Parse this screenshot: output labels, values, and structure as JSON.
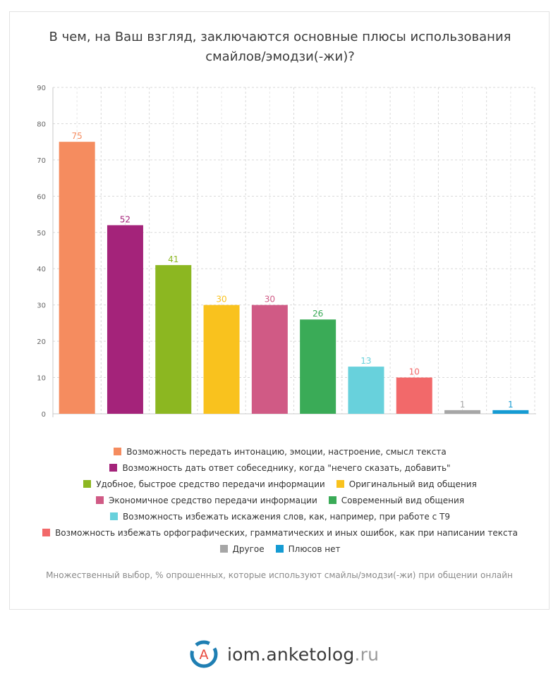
{
  "chart_data": {
    "type": "bar",
    "title": "В чем, на Ваш взгляд, заключаются основные плюсы использования смайлов/эмодзи(-жи)?",
    "title_lines": [
      "В чем, на Ваш взгляд, заключаются основные плюсы использования",
      "смайлов/эмодзи(-жи)?"
    ],
    "ylim": [
      0,
      90
    ],
    "yticks": [
      0,
      10,
      20,
      30,
      40,
      50,
      60,
      70,
      80,
      90
    ],
    "grid": true,
    "legend_position": "bottom",
    "series": [
      {
        "name": "Возможность передать интонацию, эмоции, настроение, смысл текста",
        "value": 75,
        "color": "#f58c5f"
      },
      {
        "name": "Возможность дать ответ собеседнику, когда \"нечего сказать, добавить\"",
        "value": 52,
        "color": "#a4237a"
      },
      {
        "name": "Удобное, быстрое средство передачи информации",
        "value": 41,
        "color": "#8cb721"
      },
      {
        "name": "Оригинальный вид общения",
        "value": 30,
        "color": "#f9c21e"
      },
      {
        "name": "Экономичное средство передачи информации",
        "value": 30,
        "color": "#d05a85"
      },
      {
        "name": "Современный вид общения",
        "value": 26,
        "color": "#3aab57"
      },
      {
        "name": "Возможность избежать искажения слов, как, например, при работе с Т9",
        "value": 13,
        "color": "#68d1dc"
      },
      {
        "name": "Возможность избежать орфографических, грамматических и иных ошибок, как при написании текста",
        "value": 10,
        "color": "#f2696a"
      },
      {
        "name": "Другое",
        "value": 1,
        "color": "#a6a6a6"
      },
      {
        "name": "Плюсов нет",
        "value": 1,
        "color": "#159bd3"
      }
    ],
    "legend_rows": [
      [
        0
      ],
      [
        1
      ],
      [
        2,
        3
      ],
      [
        4,
        5
      ],
      [
        6
      ],
      [
        7
      ],
      [
        8,
        9
      ]
    ],
    "note": "Множественный выбор, % опрошенных, которые используют смайлы/эмодзи(-жи) при общении онлайн"
  },
  "brand": {
    "logo_letter": "A",
    "name": "iom.anketolog",
    "tld": ".ru"
  }
}
